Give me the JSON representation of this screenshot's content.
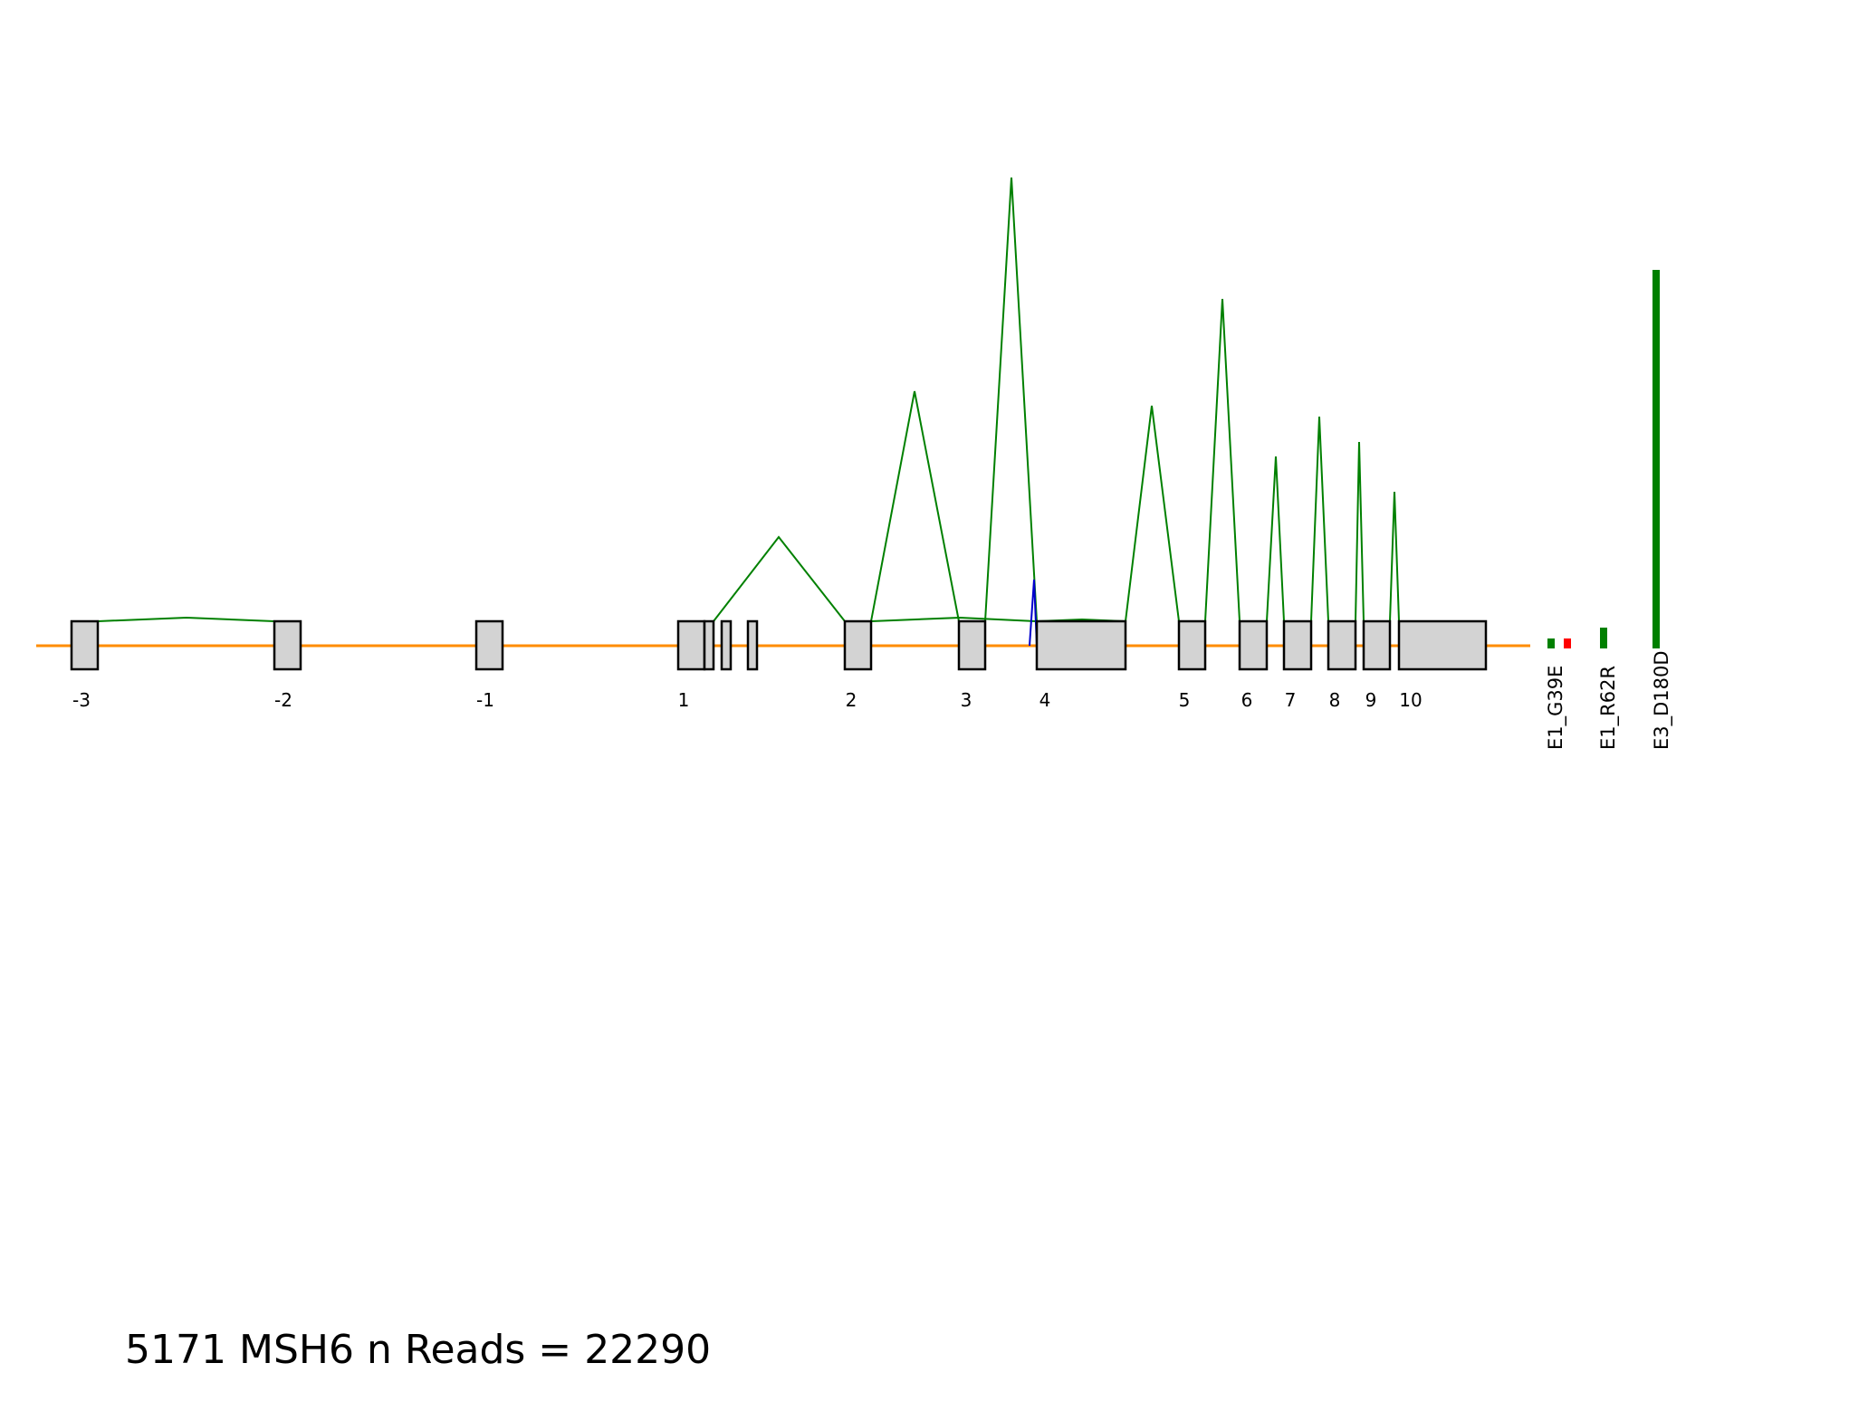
{
  "caption": {
    "sample_id": "5171",
    "gene": "MSH6",
    "reads_label": "n Reads =",
    "reads_value": "22290"
  },
  "colors": {
    "intron_line": "#ff8c00",
    "exon_fill": "#d3d3d3",
    "exon_stroke": "#000000",
    "junction_green": "#008000",
    "junction_blue": "#0000cd",
    "variant_green": "#008000",
    "variant_red": "#ff0000"
  },
  "exon_labels": [
    "-3",
    "-2",
    "-1",
    "1",
    "2",
    "3",
    "4",
    "5",
    "6",
    "7",
    "8",
    "9",
    "10"
  ],
  "variants": [
    {
      "name": "E1_G39E",
      "colors": [
        "#008000",
        "#ff0000"
      ]
    },
    {
      "name": "E1_R62R",
      "colors": [
        "#008000"
      ]
    },
    {
      "name": "E3_D180D",
      "colors": [
        "#008000"
      ]
    }
  ]
}
